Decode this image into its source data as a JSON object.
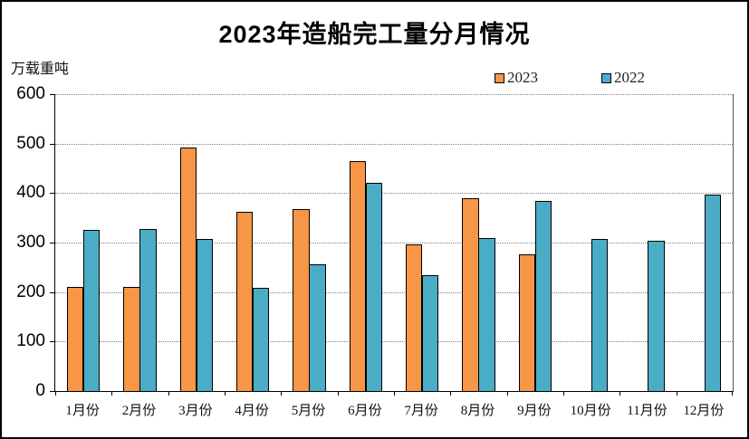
{
  "title": "2023年造船完工量分月情况",
  "y_axis_unit": "万载重吨",
  "colors": {
    "series_2023": "#F79646",
    "series_2022": "#4BACC6",
    "bar_outline": "#000000",
    "gridline": "#7F7F7F"
  },
  "chart_data": {
    "type": "bar",
    "title": "2023年造船完工量分月情况",
    "ylabel": "万载重吨",
    "xlabel": "",
    "categories": [
      "1月份",
      "2月份",
      "3月份",
      "4月份",
      "5月份",
      "6月份",
      "7月份",
      "8月份",
      "9月份",
      "10月份",
      "11月份",
      "12月份"
    ],
    "series": [
      {
        "name": "2023",
        "color": "#F79646",
        "values": [
          211,
          211,
          493,
          362,
          367,
          464,
          296,
          389,
          276,
          null,
          null,
          null
        ]
      },
      {
        "name": "2022",
        "color": "#4BACC6",
        "values": [
          325,
          327,
          308,
          209,
          256,
          421,
          234,
          310,
          385,
          308,
          303,
          397
        ]
      }
    ],
    "ylim": [
      0,
      600
    ],
    "yticks": [
      0,
      100,
      200,
      300,
      400,
      500,
      600
    ],
    "grid": "horizontal-dotted",
    "legend_position": "top-right"
  }
}
